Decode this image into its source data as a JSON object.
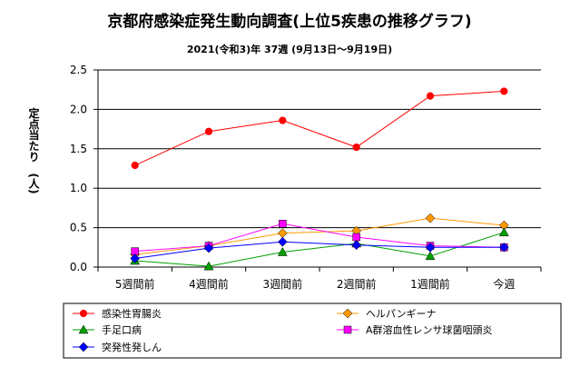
{
  "chart_data": {
    "type": "line",
    "title": "京都府感染症発生動向調査(上位5疾患の推移グラフ)",
    "subtitle": "2021(令和3)年 37週 (9月13日～9月19日)",
    "ylabel": "定点当たり　(人)",
    "xlabel": "",
    "categories": [
      "5週間前",
      "4週間前",
      "3週間前",
      "2週間前",
      "1週間前",
      "今週"
    ],
    "ylim": [
      0,
      2.5
    ],
    "yticks": [
      "0.0",
      "0.5",
      "1.0",
      "1.5",
      "2.0",
      "2.5"
    ],
    "grid": true,
    "legend_position": "bottom",
    "series": [
      {
        "name": "感染性胃腸炎",
        "values": [
          1.29,
          1.72,
          1.86,
          1.52,
          2.17,
          2.23
        ],
        "color": "#ff0000",
        "marker": "circle"
      },
      {
        "name": "ヘルパンギーナ",
        "values": [
          0.16,
          0.27,
          0.43,
          0.46,
          0.62,
          0.53
        ],
        "color": "#ff9900",
        "marker": "diamond"
      },
      {
        "name": "手足口病",
        "values": [
          0.08,
          0.01,
          0.19,
          0.3,
          0.14,
          0.44
        ],
        "color": "#00a000",
        "marker": "triangle"
      },
      {
        "name": "A群溶血性レンサ球菌咽頭炎",
        "values": [
          0.2,
          0.27,
          0.55,
          0.38,
          0.27,
          0.25
        ],
        "color": "#ff00ff",
        "marker": "square"
      },
      {
        "name": "突発性発しん",
        "values": [
          0.11,
          0.24,
          0.32,
          0.28,
          0.25,
          0.25
        ],
        "color": "#0000ff",
        "marker": "diamond"
      }
    ]
  }
}
